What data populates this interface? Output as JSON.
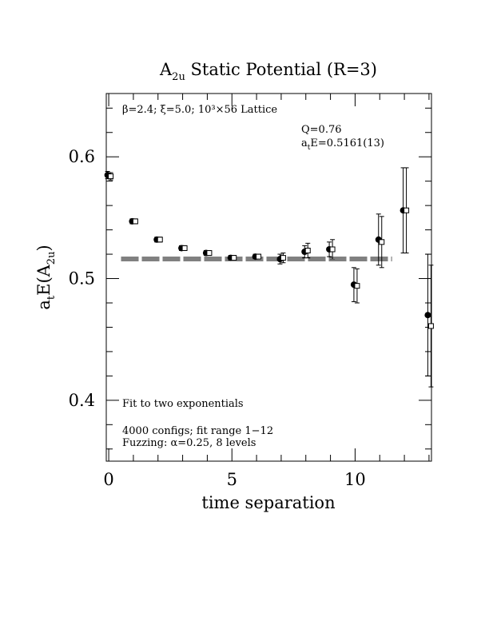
{
  "chart_data": {
    "type": "scatter",
    "title_main": "A",
    "title_sub": "2u",
    "title_rest": " Static Potential (R=3)",
    "xlabel": "time separation",
    "ylabel_parts": [
      "a",
      "t",
      "E(A",
      "2u",
      ")"
    ],
    "xlim": [
      -0.1,
      13.1
    ],
    "ylim": [
      0.35,
      0.652
    ],
    "x_ticks": [
      0,
      5,
      10
    ],
    "y_ticks": [
      0.4,
      0.5,
      0.6
    ],
    "x_tick_labels": [
      "0",
      "5",
      "10"
    ],
    "y_tick_labels": [
      "0.4",
      "0.5",
      "0.6"
    ],
    "x_minor_step": 1,
    "y_minor_step": 0.02,
    "annotations": {
      "lattice": "β=2.4; ξ=5.0; 10³×56 Lattice",
      "q_value": "Q=0.76",
      "energy_a": "a",
      "energy_t": "t",
      "energy_rest": "E=0.5161(13)",
      "fit_note": "Fit to two exponentials",
      "configs_note": "4000 configs; fit range 1−12",
      "fuzzing_note": "Fuzzing: α=0.25, 8 levels"
    },
    "fit": {
      "value": 0.5161,
      "error": 0.0013,
      "x_range": [
        0.5,
        11.5
      ]
    },
    "series": [
      {
        "marker": "filled-circle",
        "points": [
          {
            "x": 0,
            "y": 0.585,
            "err": 0.003
          },
          {
            "x": 1,
            "y": 0.547,
            "err": 0.002
          },
          {
            "x": 2,
            "y": 0.532,
            "err": 0.002
          },
          {
            "x": 3,
            "y": 0.525,
            "err": 0.002
          },
          {
            "x": 4,
            "y": 0.521,
            "err": 0.002
          },
          {
            "x": 5,
            "y": 0.517,
            "err": 0.002
          },
          {
            "x": 6,
            "y": 0.518,
            "err": 0.002
          },
          {
            "x": 7,
            "y": 0.516,
            "err": 0.004
          },
          {
            "x": 8,
            "y": 0.522,
            "err": 0.005
          },
          {
            "x": 9,
            "y": 0.524,
            "err": 0.006
          },
          {
            "x": 10,
            "y": 0.495,
            "err": 0.014
          },
          {
            "x": 11,
            "y": 0.532,
            "err": 0.021
          },
          {
            "x": 12,
            "y": 0.556,
            "err": 0.035
          },
          {
            "x": 13,
            "y": 0.47,
            "err": 0.05
          }
        ]
      },
      {
        "marker": "open-square",
        "points": [
          {
            "x": 0,
            "y": 0.584,
            "err": 0.003
          },
          {
            "x": 1,
            "y": 0.547,
            "err": 0.002
          },
          {
            "x": 2,
            "y": 0.532,
            "err": 0.002
          },
          {
            "x": 3,
            "y": 0.525,
            "err": 0.002
          },
          {
            "x": 4,
            "y": 0.521,
            "err": 0.002
          },
          {
            "x": 5,
            "y": 0.517,
            "err": 0.002
          },
          {
            "x": 6,
            "y": 0.518,
            "err": 0.002
          },
          {
            "x": 7,
            "y": 0.517,
            "err": 0.004
          },
          {
            "x": 8,
            "y": 0.523,
            "err": 0.006
          },
          {
            "x": 9,
            "y": 0.524,
            "err": 0.008
          },
          {
            "x": 10,
            "y": 0.494,
            "err": 0.014
          },
          {
            "x": 11,
            "y": 0.53,
            "err": 0.021
          },
          {
            "x": 12,
            "y": 0.556,
            "err": 0.035
          },
          {
            "x": 13,
            "y": 0.461,
            "err": 0.05
          }
        ]
      }
    ]
  }
}
